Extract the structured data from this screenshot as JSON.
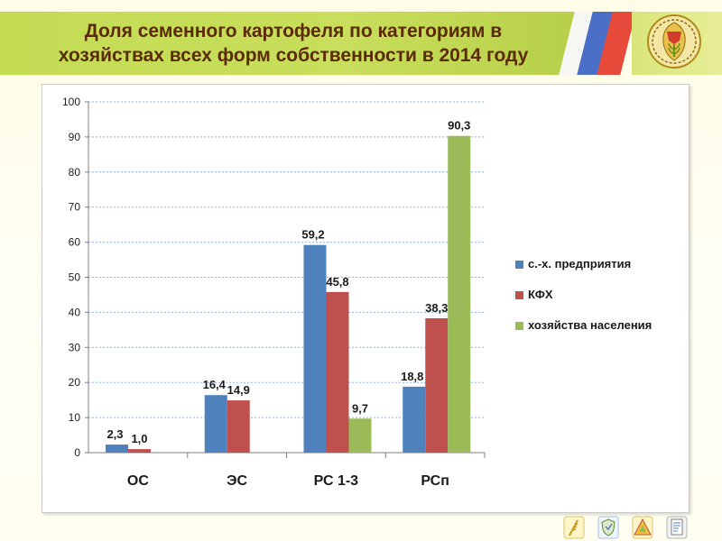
{
  "header": {
    "title_line1": "Доля семенного картофеля по категориям в",
    "title_line2": "хозяйствах всех форм собственности в 2014 году"
  },
  "colors": {
    "series": [
      "#4f81bd",
      "#c0504d",
      "#9bbb59"
    ],
    "header_band": "#c4dc54",
    "title_text": "#5b2a06"
  },
  "icons": [
    "coat-of-arms-icon",
    "wheat-ear-icon",
    "shield-icon",
    "triangle-emblem-icon",
    "document-icon"
  ],
  "chart_data": {
    "type": "bar",
    "categories": [
      "ОС",
      "ЭС",
      "РС 1-3",
      "РСп"
    ],
    "series": [
      {
        "name": "с.-х. предприятия",
        "values": [
          2.3,
          16.4,
          59.2,
          18.8
        ],
        "labels": [
          "2,3",
          "16,4",
          "59,2",
          "18,8"
        ]
      },
      {
        "name": "КФХ",
        "values": [
          1.0,
          14.9,
          45.8,
          38.3
        ],
        "labels": [
          "1,0",
          "14,9",
          "45,8",
          "38,3"
        ]
      },
      {
        "name": "хозяйства населения",
        "values": [
          null,
          null,
          9.7,
          90.3
        ],
        "labels": [
          "",
          "",
          "9,7",
          "90,3"
        ]
      }
    ],
    "ylim": [
      0,
      100
    ],
    "yticks": [
      0,
      10,
      20,
      30,
      40,
      50,
      60,
      70,
      80,
      90,
      100
    ],
    "grid": true,
    "legend_position": "right"
  }
}
